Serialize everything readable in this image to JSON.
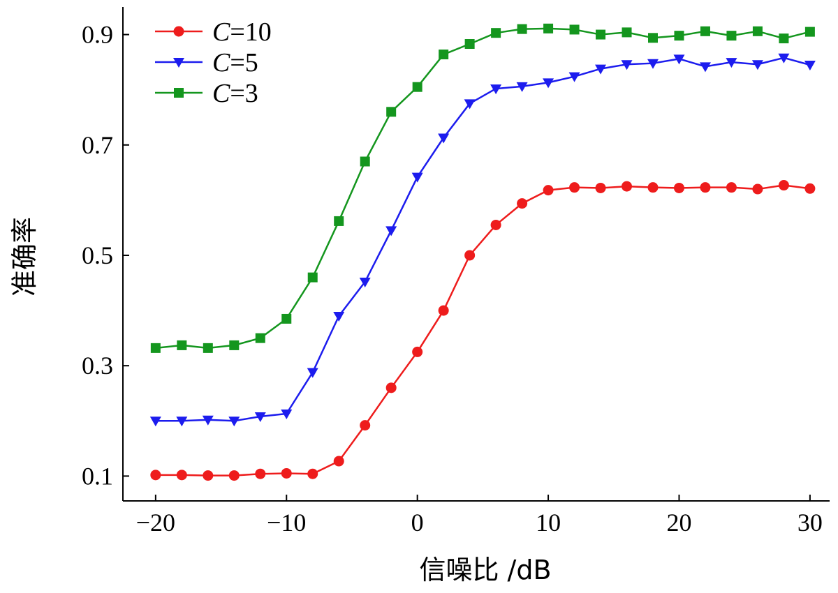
{
  "chart_data": {
    "type": "line",
    "title": "",
    "xlabel": "信噪比 /dB",
    "ylabel": "准确率",
    "xlim": [
      -22.5,
      31.5
    ],
    "ylim": [
      0.055,
      0.95
    ],
    "xticks": [
      -20,
      -10,
      0,
      10,
      20,
      30
    ],
    "xtick_labels": [
      "−20",
      "−10",
      "0",
      "10",
      "20",
      "30"
    ],
    "yticks": [
      0.1,
      0.3,
      0.5,
      0.7,
      0.9
    ],
    "ytick_labels": [
      "0.1",
      "0.3",
      "0.5",
      "0.7",
      "0.9"
    ],
    "grid": false,
    "legend_position": "top-left",
    "x": [
      -20,
      -18,
      -16,
      -14,
      -12,
      -10,
      -8,
      -6,
      -4,
      -2,
      0,
      2,
      4,
      6,
      8,
      10,
      12,
      14,
      16,
      18,
      20,
      22,
      24,
      26,
      28,
      30
    ],
    "series": [
      {
        "name": "C=10",
        "legend_var": "C",
        "legend_value": "=10",
        "color": "#ee1c1c",
        "marker": "circle",
        "values": [
          0.102,
          0.102,
          0.101,
          0.101,
          0.104,
          0.105,
          0.104,
          0.127,
          0.192,
          0.26,
          0.325,
          0.4,
          0.5,
          0.555,
          0.594,
          0.618,
          0.623,
          0.622,
          0.625,
          0.623,
          0.622,
          0.623,
          0.623,
          0.62,
          0.627,
          0.621
        ]
      },
      {
        "name": "C=5",
        "legend_var": "C",
        "legend_value": "=5",
        "color": "#1c1cee",
        "marker": "triangle-down",
        "values": [
          0.2,
          0.2,
          0.202,
          0.2,
          0.208,
          0.213,
          0.288,
          0.39,
          0.452,
          0.545,
          0.642,
          0.713,
          0.775,
          0.802,
          0.806,
          0.813,
          0.824,
          0.838,
          0.846,
          0.848,
          0.856,
          0.842,
          0.85,
          0.846,
          0.858,
          0.845
        ]
      },
      {
        "name": "C=3",
        "legend_var": "C",
        "legend_value": "=3",
        "color": "#14961e",
        "marker": "square",
        "values": [
          0.332,
          0.337,
          0.332,
          0.337,
          0.35,
          0.385,
          0.46,
          0.562,
          0.67,
          0.76,
          0.805,
          0.864,
          0.883,
          0.903,
          0.91,
          0.911,
          0.909,
          0.9,
          0.904,
          0.894,
          0.898,
          0.906,
          0.898,
          0.906,
          0.893,
          0.905
        ]
      }
    ]
  }
}
